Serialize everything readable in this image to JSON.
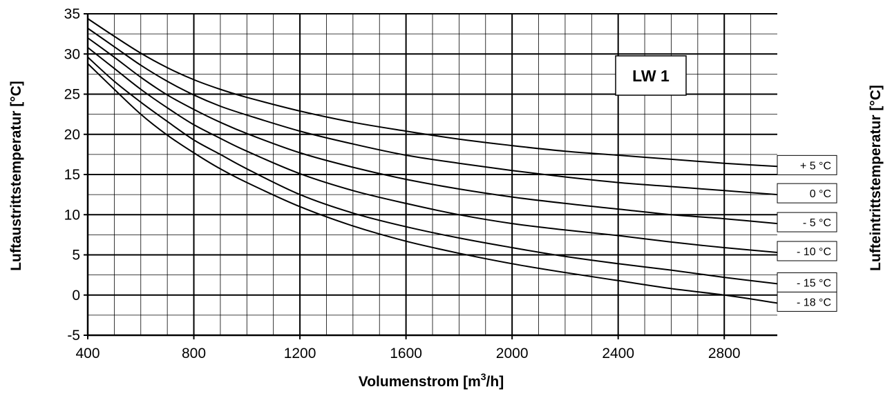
{
  "chart_data": {
    "type": "line",
    "title": "",
    "badge": "LW 1",
    "xlabel_main": "Volumenstrom [m",
    "xlabel_sup": "3",
    "xlabel_tail": "/h]",
    "ylabel": "Luftaustrittstemperatur [°C]",
    "y2label": "Lufteintrittstemperatur [°C]",
    "xlim": [
      400,
      3000
    ],
    "ylim": [
      -5,
      35
    ],
    "grid": true,
    "x_ticks": [
      400,
      800,
      1200,
      1600,
      2000,
      2400,
      2800
    ],
    "y_ticks": [
      -5,
      0,
      5,
      10,
      15,
      20,
      25,
      30,
      35
    ],
    "legend_position": "right",
    "series": [
      {
        "name": "+  5 °C",
        "x": [
          400,
          500,
          600,
          700,
          800,
          900,
          1000,
          1200,
          1400,
          1600,
          1800,
          2000,
          2200,
          2400,
          2600,
          2800,
          3000
        ],
        "y": [
          34.4,
          32.2,
          30.1,
          28.3,
          26.8,
          25.6,
          24.6,
          22.9,
          21.5,
          20.4,
          19.4,
          18.6,
          17.9,
          17.4,
          16.9,
          16.4,
          16.0
        ]
      },
      {
        "name": "0 °C",
        "x": [
          400,
          500,
          600,
          700,
          800,
          900,
          1000,
          1200,
          1400,
          1600,
          1800,
          2000,
          2200,
          2400,
          2600,
          2800,
          3000
        ],
        "y": [
          33.2,
          30.9,
          28.6,
          26.6,
          24.9,
          23.5,
          22.4,
          20.4,
          18.8,
          17.4,
          16.4,
          15.5,
          14.7,
          14.0,
          13.5,
          13.0,
          12.5
        ]
      },
      {
        "name": "-  5 °C",
        "x": [
          400,
          500,
          600,
          700,
          800,
          900,
          1000,
          1200,
          1400,
          1600,
          1800,
          2000,
          2200,
          2400,
          2600,
          2800,
          3000
        ],
        "y": [
          32.0,
          29.6,
          27.1,
          24.9,
          23.1,
          21.5,
          20.1,
          17.7,
          15.9,
          14.4,
          13.2,
          12.2,
          11.4,
          10.7,
          10.0,
          9.5,
          8.9
        ]
      },
      {
        "name": "- 10 °C",
        "x": [
          400,
          500,
          600,
          700,
          800,
          900,
          1000,
          1200,
          1400,
          1600,
          1800,
          2000,
          2200,
          2400,
          2600,
          2800,
          3000
        ],
        "y": [
          30.8,
          28.2,
          25.6,
          23.3,
          21.2,
          19.5,
          17.9,
          15.1,
          13.0,
          11.4,
          10.0,
          8.9,
          8.1,
          7.4,
          6.6,
          5.9,
          5.3
        ]
      },
      {
        "name": "- 15 °C",
        "x": [
          400,
          500,
          600,
          700,
          800,
          900,
          1000,
          1200,
          1400,
          1600,
          1800,
          2000,
          2200,
          2400,
          2600,
          2800,
          3000
        ],
        "y": [
          29.6,
          26.6,
          24.0,
          21.6,
          19.3,
          17.5,
          15.7,
          12.5,
          10.2,
          8.5,
          7.1,
          5.9,
          4.8,
          3.9,
          3.1,
          2.2,
          1.4
        ]
      },
      {
        "name": "- 18 °C",
        "x": [
          400,
          500,
          600,
          700,
          800,
          900,
          1000,
          1200,
          1400,
          1600,
          1800,
          2000,
          2200,
          2400,
          2600,
          2800,
          3000
        ],
        "y": [
          28.8,
          25.6,
          22.5,
          19.9,
          17.7,
          15.7,
          14.0,
          11.0,
          8.6,
          6.7,
          5.2,
          3.9,
          2.8,
          1.8,
          0.8,
          0.0,
          -1.0
        ]
      }
    ]
  }
}
